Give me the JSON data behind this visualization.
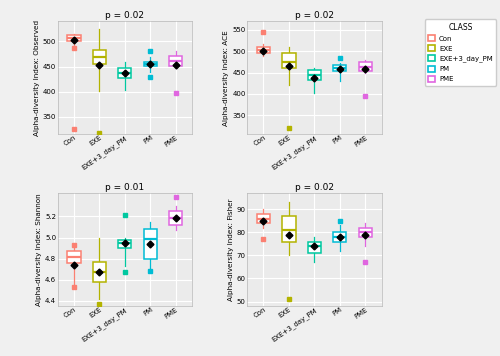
{
  "panels": [
    {
      "title": "p = 0.02",
      "ylabel": "Alpha-diversity Index: Observed",
      "ylim": [
        315,
        540
      ],
      "yticks": [
        350,
        400,
        450,
        500
      ],
      "groups": [
        "Con",
        "EXE",
        "EXE+3_day_PM",
        "PM",
        "PME"
      ],
      "colors": [
        "#fb8072",
        "#b3b300",
        "#00c8a0",
        "#00bcd4",
        "#e066e0"
      ],
      "box_data": [
        {
          "q1": 500,
          "median": 507,
          "q3": 512,
          "mean": 503,
          "whislo": 488,
          "whishi": 515,
          "fliers_lo": [
            325
          ],
          "fliers_hi": [
            486
          ]
        },
        {
          "q1": 455,
          "median": 470,
          "q3": 483,
          "mean": 453,
          "whislo": 402,
          "whishi": 525,
          "fliers_lo": [
            317
          ],
          "fliers_hi": []
        },
        {
          "q1": 428,
          "median": 438,
          "q3": 448,
          "mean": 437,
          "whislo": 403,
          "whishi": 460,
          "fliers_lo": [],
          "fliers_hi": []
        },
        {
          "q1": 451,
          "median": 456,
          "q3": 460,
          "mean": 455,
          "whislo": 440,
          "whishi": 470,
          "fliers_lo": [
            430
          ],
          "fliers_hi": [
            480
          ]
        },
        {
          "q1": 452,
          "median": 462,
          "q3": 472,
          "mean": 453,
          "whislo": 447,
          "whishi": 480,
          "fliers_lo": [
            397
          ],
          "fliers_hi": []
        }
      ]
    },
    {
      "title": "p = 0.02",
      "ylabel": "Alpha-diversity Index: ACE",
      "ylim": [
        305,
        570
      ],
      "yticks": [
        350,
        400,
        450,
        500,
        550
      ],
      "groups": [
        "Con",
        "EXE",
        "EXE+3_day_PM",
        "PM",
        "PME"
      ],
      "colors": [
        "#fb8072",
        "#b3b300",
        "#00c8a0",
        "#00bcd4",
        "#e066e0"
      ],
      "box_data": [
        {
          "q1": 495,
          "median": 502,
          "q3": 510,
          "mean": 500,
          "whislo": 488,
          "whishi": 516,
          "fliers_lo": [],
          "fliers_hi": [
            545
          ]
        },
        {
          "q1": 460,
          "median": 475,
          "q3": 495,
          "mean": 465,
          "whislo": 420,
          "whishi": 510,
          "fliers_lo": [
            320
          ],
          "fliers_hi": []
        },
        {
          "q1": 433,
          "median": 445,
          "q3": 455,
          "mean": 438,
          "whislo": 402,
          "whishi": 460,
          "fliers_lo": [],
          "fliers_hi": []
        },
        {
          "q1": 453,
          "median": 460,
          "q3": 467,
          "mean": 458,
          "whislo": 430,
          "whishi": 472,
          "fliers_lo": [],
          "fliers_hi": [
            485
          ]
        },
        {
          "q1": 453,
          "median": 463,
          "q3": 475,
          "mean": 458,
          "whislo": 448,
          "whishi": 480,
          "fliers_lo": [
            394
          ],
          "fliers_hi": []
        }
      ]
    },
    {
      "title": "p = 0.01",
      "ylabel": "Alpha-diversity Index: Shannon",
      "ylim": [
        4.35,
        5.42
      ],
      "yticks": [
        4.4,
        4.6,
        4.8,
        5.0,
        5.2
      ],
      "groups": [
        "Con",
        "EXE",
        "EXE+3_day_PM",
        "PM",
        "PME"
      ],
      "colors": [
        "#fb8072",
        "#b3b300",
        "#00c8a0",
        "#00bcd4",
        "#e066e0"
      ],
      "box_data": [
        {
          "q1": 4.76,
          "median": 4.82,
          "q3": 4.87,
          "mean": 4.74,
          "whislo": 4.55,
          "whishi": 4.93,
          "fliers_lo": [
            4.53
          ],
          "fliers_hi": [
            4.93
          ]
        },
        {
          "q1": 4.58,
          "median": 4.67,
          "q3": 4.77,
          "mean": 4.67,
          "whislo": 4.42,
          "whishi": 5.0,
          "fliers_lo": [
            4.37
          ],
          "fliers_hi": []
        },
        {
          "q1": 4.9,
          "median": 4.95,
          "q3": 4.98,
          "mean": 4.95,
          "whislo": 4.73,
          "whishi": 5.0,
          "fliers_lo": [
            4.67
          ],
          "fliers_hi": [
            5.21
          ]
        },
        {
          "q1": 4.8,
          "median": 4.99,
          "q3": 5.08,
          "mean": 4.94,
          "whislo": 4.7,
          "whishi": 5.15,
          "fliers_lo": [
            4.68
          ],
          "fliers_hi": []
        },
        {
          "q1": 5.12,
          "median": 5.18,
          "q3": 5.25,
          "mean": 5.18,
          "whislo": 5.07,
          "whishi": 5.3,
          "fliers_lo": [],
          "fliers_hi": [
            5.38
          ]
        }
      ]
    },
    {
      "title": "p = 0.02",
      "ylabel": "Alpha-diversity Index: Fisher",
      "ylim": [
        48,
        97
      ],
      "yticks": [
        50,
        60,
        70,
        80,
        90
      ],
      "groups": [
        "Con",
        "EXE",
        "EXE+3_day_PM",
        "PM",
        "PME"
      ],
      "colors": [
        "#fb8072",
        "#b3b300",
        "#00c8a0",
        "#00bcd4",
        "#e066e0"
      ],
      "box_data": [
        {
          "q1": 84,
          "median": 86,
          "q3": 88,
          "mean": 85,
          "whislo": 82,
          "whishi": 90,
          "fliers_lo": [
            77
          ],
          "fliers_hi": []
        },
        {
          "q1": 76,
          "median": 81,
          "q3": 87,
          "mean": 79,
          "whislo": 70,
          "whishi": 93,
          "fliers_lo": [
            51
          ],
          "fliers_hi": []
        },
        {
          "q1": 71,
          "median": 74,
          "q3": 76,
          "mean": 74,
          "whislo": 67,
          "whishi": 78,
          "fliers_lo": [],
          "fliers_hi": []
        },
        {
          "q1": 76,
          "median": 78,
          "q3": 80,
          "mean": 78,
          "whislo": 72,
          "whishi": 83,
          "fliers_lo": [],
          "fliers_hi": [
            85
          ]
        },
        {
          "q1": 78,
          "median": 80,
          "q3": 82,
          "mean": 79,
          "whislo": 74,
          "whishi": 84,
          "fliers_lo": [
            67
          ],
          "fliers_hi": []
        }
      ]
    }
  ],
  "legend_labels": [
    "Con",
    "EXE",
    "EXE+3_day_PM",
    "PM",
    "PME"
  ],
  "legend_colors": [
    "#fb8072",
    "#b3b300",
    "#00c8a0",
    "#00bcd4",
    "#e066e0"
  ],
  "background_color": "#ebebeb",
  "panel_bg": "#ebebeb",
  "grid_color": "#ffffff"
}
